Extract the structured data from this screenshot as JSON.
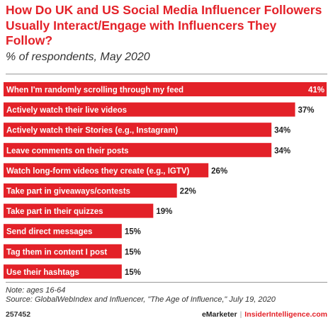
{
  "header": {
    "title": "How Do UK and US Social Media Influencer Followers Usually Interact/Engage with Influencers They Follow?",
    "subtitle": "% of respondents, May 2020"
  },
  "chart_data": {
    "type": "bar",
    "orientation": "horizontal",
    "categories": [
      "When I'm randomly scrolling through my feed",
      "Actively watch their live videos",
      "Actively watch their Stories (e.g., Instagram)",
      "Leave comments on their posts",
      "Watch long-form videos they create (e.g., IGTV)",
      "Take part in giveaways/contests",
      "Take part in their quizzes",
      "Send direct messages",
      "Tag them in content I post",
      "Use their hashtags"
    ],
    "values": [
      41,
      37,
      34,
      34,
      26,
      22,
      19,
      15,
      15,
      15
    ],
    "value_labels": [
      "41%",
      "37%",
      "34%",
      "34%",
      "26%",
      "22%",
      "19%",
      "15%",
      "15%",
      "15%"
    ],
    "bar_color": "#e32128",
    "title": "How Do UK and US Social Media Influencer Followers Usually Interact/Engage with Influencers They Follow?",
    "subtitle": "% of respondents, May 2020",
    "xlabel": "",
    "ylabel": "",
    "xlim": [
      0,
      41
    ],
    "grid": false
  },
  "footnote": {
    "note": "Note: ages 16-64",
    "source": "Source: GlobalWebIndex and Influencer, \"The Age of Influence,\" July 19, 2020"
  },
  "footer": {
    "chart_id": "257452",
    "brand": "eMarketer",
    "separator": "|",
    "site": "InsiderIntelligence.com"
  }
}
